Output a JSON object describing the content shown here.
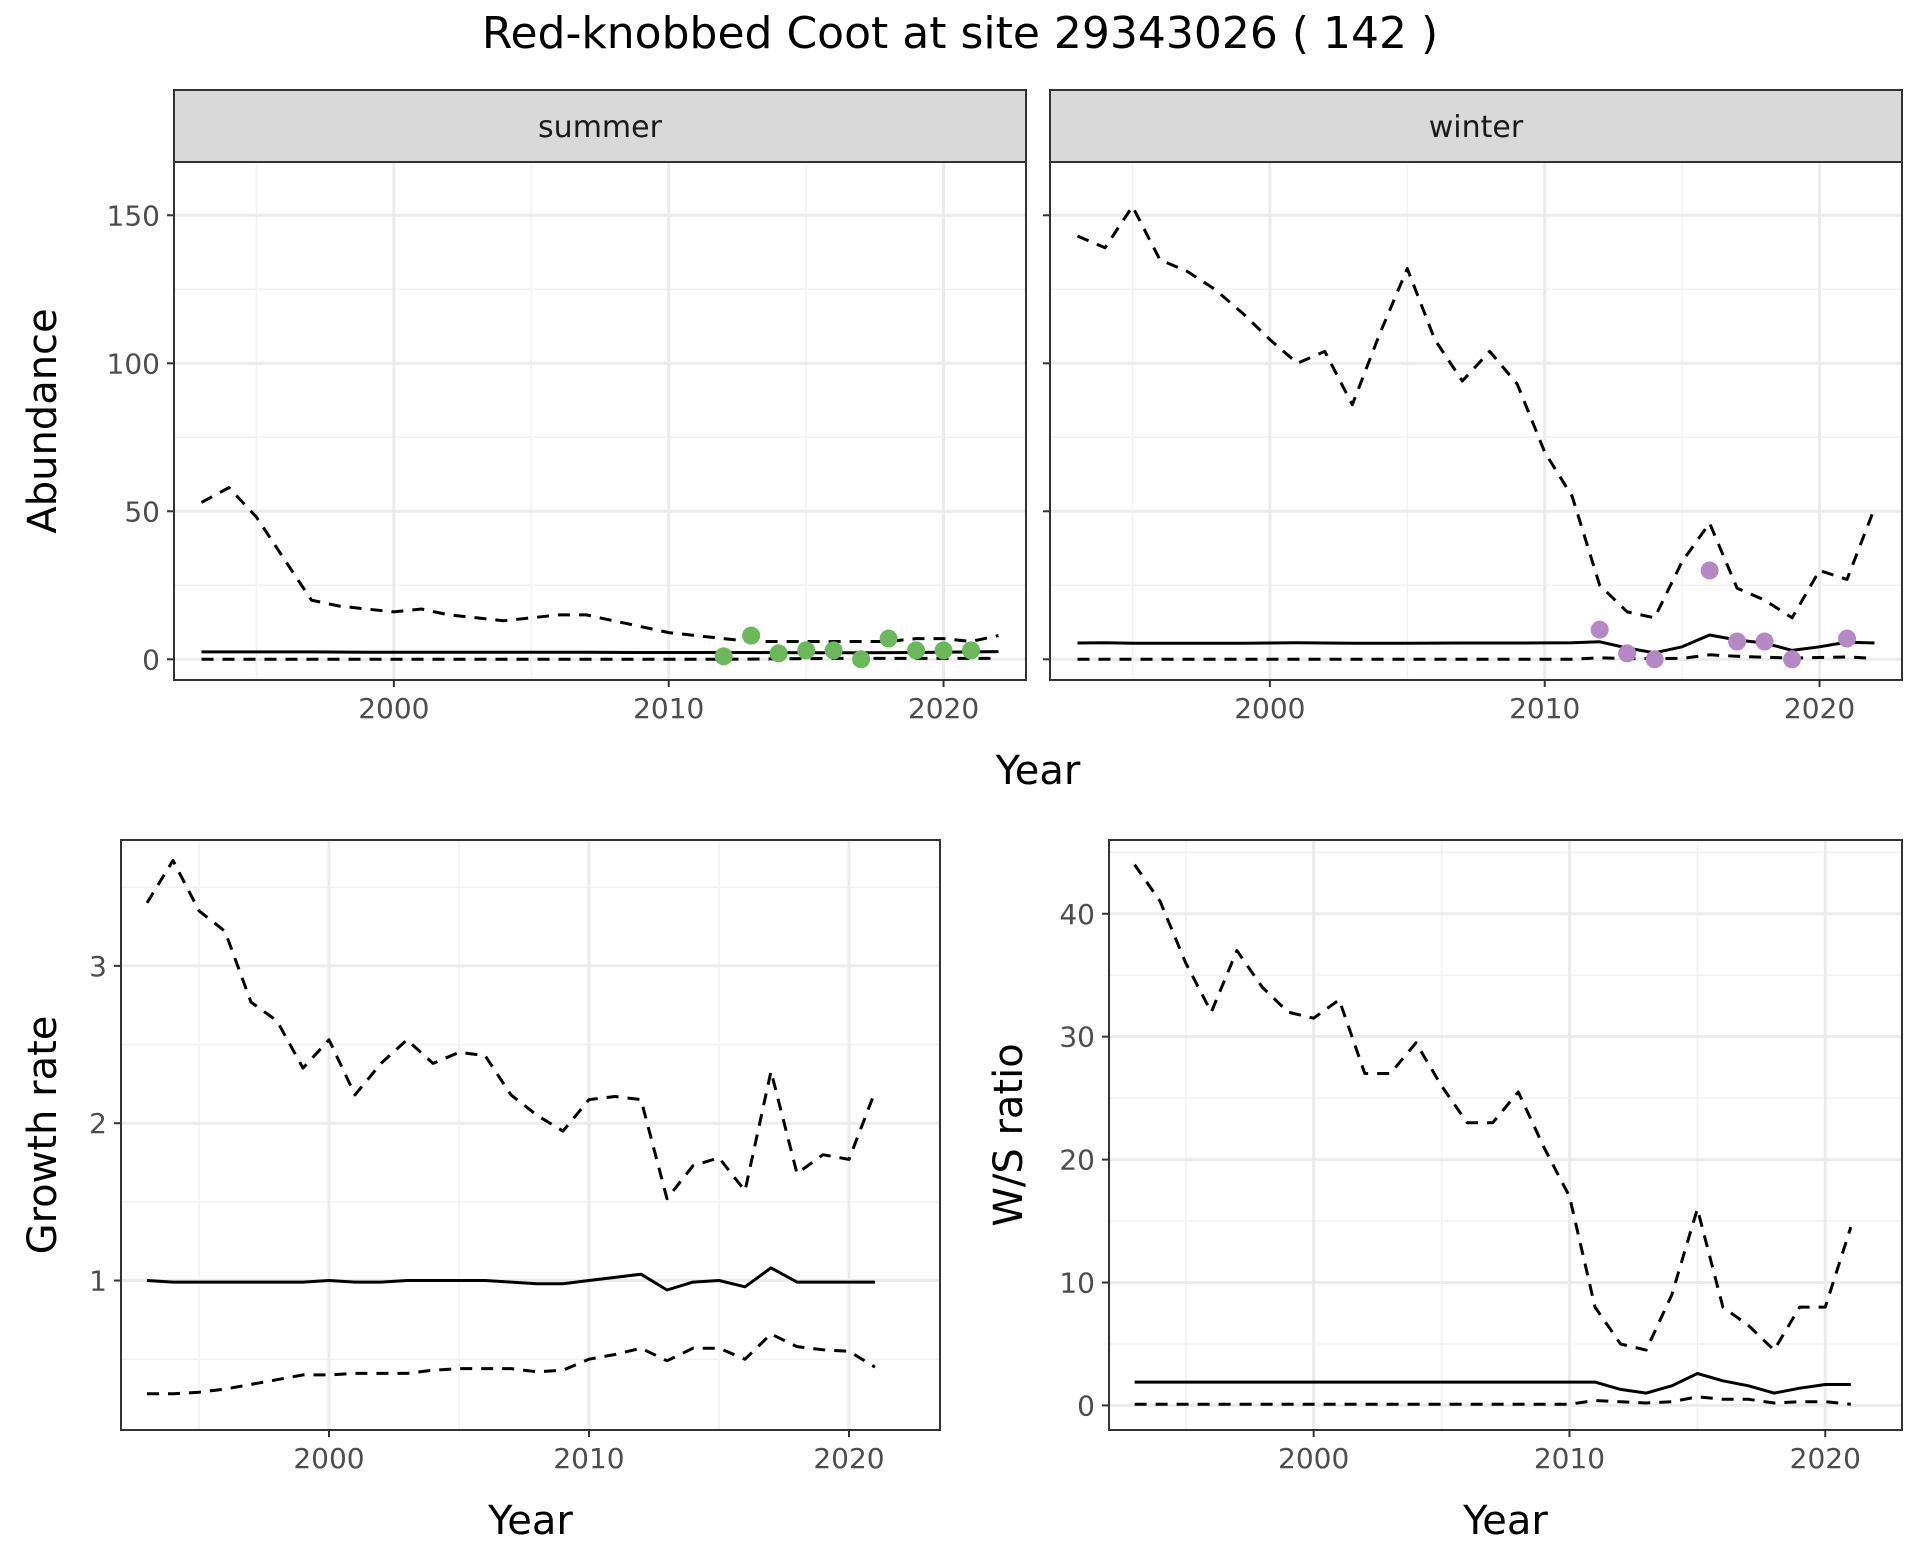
{
  "title": "Red-knobbed Coot at site 29343026 ( 142 )",
  "colors": {
    "summer_points": "#6ab85a",
    "winter_points": "#b388c4",
    "grid": "#ebebeb",
    "strip_fill": "#d9d9d9"
  },
  "chart_data": [
    {
      "type": "line",
      "panel": "summer",
      "strip": "summer",
      "xlabel": "Year",
      "ylabel": "Abundance",
      "xlim": [
        1992,
        2023
      ],
      "ylim": [
        -7,
        168
      ],
      "x_ticks": [
        2000,
        2010,
        2020
      ],
      "y_ticks": [
        0,
        50,
        100,
        150
      ],
      "grid": true,
      "series": [
        {
          "style": "solid",
          "x": [
            1993,
            1995,
            1997,
            1999,
            2001,
            2003,
            2005,
            2007,
            2009,
            2011,
            2013,
            2015,
            2017,
            2019,
            2021,
            2022
          ],
          "y": [
            2.5,
            2.5,
            2.5,
            2.4,
            2.4,
            2.4,
            2.4,
            2.4,
            2.3,
            2.3,
            2.3,
            2.2,
            2.2,
            2.3,
            2.5,
            2.6
          ]
        },
        {
          "style": "dashed",
          "x": [
            1993,
            1994,
            1995,
            1996,
            1997,
            1998,
            1999,
            2000,
            2001,
            2002,
            2003,
            2004,
            2005,
            2006,
            2007,
            2008,
            2009,
            2010,
            2011,
            2012,
            2013,
            2014,
            2015,
            2016,
            2017,
            2018,
            2019,
            2020,
            2021,
            2022
          ],
          "y": [
            53,
            58,
            48,
            34,
            20,
            18,
            17,
            16,
            17,
            15,
            14,
            13,
            14,
            15,
            15,
            13,
            11,
            9,
            8,
            7,
            6,
            6,
            6,
            6,
            6,
            6,
            7,
            7,
            6,
            8
          ]
        },
        {
          "style": "dashed",
          "x": [
            1993,
            2012,
            2016,
            2020,
            2022
          ],
          "y": [
            0,
            0,
            0.3,
            0.3,
            0.3
          ]
        }
      ],
      "points": {
        "x": [
          2012,
          2013,
          2014,
          2015,
          2016,
          2017,
          2018,
          2019,
          2020,
          2021
        ],
        "y": [
          1,
          8,
          2,
          3,
          3,
          0,
          7,
          3,
          3,
          3
        ]
      }
    },
    {
      "type": "line",
      "panel": "winter",
      "strip": "winter",
      "xlabel": "Year",
      "ylabel": "Abundance",
      "xlim": [
        1992,
        2023
      ],
      "ylim": [
        -7,
        168
      ],
      "x_ticks": [
        2000,
        2010,
        2020
      ],
      "y_ticks": [
        0,
        50,
        100,
        150
      ],
      "grid": true,
      "series": [
        {
          "style": "solid",
          "x": [
            1993,
            1994,
            1995,
            1997,
            1999,
            2001,
            2003,
            2005,
            2007,
            2009,
            2011,
            2012,
            2013,
            2014,
            2015,
            2016,
            2017,
            2018,
            2019,
            2020,
            2021,
            2022
          ],
          "y": [
            5.5,
            5.6,
            5.4,
            5.4,
            5.4,
            5.6,
            5.4,
            5.4,
            5.5,
            5.5,
            5.6,
            5.9,
            3.8,
            2.2,
            4.2,
            8.2,
            6.5,
            5.5,
            3,
            4.2,
            5.8,
            5.5
          ]
        },
        {
          "style": "dashed",
          "x": [
            1993,
            1994,
            1995,
            1996,
            1997,
            1998,
            1999,
            2000,
            2001,
            2002,
            2003,
            2004,
            2005,
            2006,
            2007,
            2008,
            2009,
            2010,
            2011,
            2012,
            2013,
            2014,
            2015,
            2016,
            2017,
            2018,
            2019,
            2020,
            2021,
            2022
          ],
          "y": [
            143,
            139,
            153,
            135,
            131,
            125,
            117,
            108,
            100,
            104,
            86,
            110,
            132,
            108,
            94,
            104,
            93,
            70,
            55,
            25,
            16,
            14,
            33,
            46,
            24,
            20,
            14,
            30,
            27,
            51
          ]
        },
        {
          "style": "dashed",
          "x": [
            1993,
            2011,
            2012,
            2013,
            2015,
            2016,
            2017,
            2019,
            2021,
            2022
          ],
          "y": [
            0,
            0,
            0.5,
            0.2,
            0.3,
            1.5,
            1,
            0.4,
            0.8,
            0.3
          ]
        }
      ],
      "points": {
        "x": [
          2012,
          2013,
          2014,
          2016,
          2017,
          2018,
          2019,
          2021
        ],
        "y": [
          10,
          2,
          0,
          30,
          6,
          6,
          0,
          7
        ]
      }
    },
    {
      "type": "line",
      "panel": "growth",
      "xlabel": "Year",
      "ylabel": "Growth rate",
      "xlim": [
        1992,
        2023.5
      ],
      "ylim": [
        0.05,
        3.8
      ],
      "x_ticks": [
        2000,
        2010,
        2020
      ],
      "y_ticks": [
        1,
        2,
        3
      ],
      "grid": true,
      "series": [
        {
          "style": "solid",
          "x": [
            1993,
            1994,
            1995,
            1996,
            1997,
            1998,
            1999,
            2000,
            2001,
            2002,
            2003,
            2004,
            2005,
            2006,
            2007,
            2008,
            2009,
            2010,
            2011,
            2012,
            2013,
            2014,
            2015,
            2016,
            2017,
            2018,
            2019,
            2020,
            2021
          ],
          "y": [
            1.0,
            0.99,
            0.99,
            0.99,
            0.99,
            0.99,
            0.99,
            1.0,
            0.99,
            0.99,
            1.0,
            1.0,
            1.0,
            1.0,
            0.99,
            0.98,
            0.98,
            1.0,
            1.02,
            1.04,
            0.94,
            0.99,
            1.0,
            0.96,
            1.08,
            0.99,
            0.99,
            0.99,
            0.99
          ]
        },
        {
          "style": "dashed",
          "x": [
            1993,
            1994,
            1995,
            1996,
            1997,
            1998,
            1999,
            2000,
            2001,
            2002,
            2003,
            2004,
            2005,
            2006,
            2007,
            2008,
            2009,
            2010,
            2011,
            2012,
            2013,
            2014,
            2015,
            2016,
            2017,
            2018,
            2019,
            2020,
            2021
          ],
          "y": [
            3.4,
            3.67,
            3.35,
            3.22,
            2.77,
            2.65,
            2.35,
            2.53,
            2.18,
            2.38,
            2.53,
            2.38,
            2.45,
            2.43,
            2.18,
            2.05,
            1.95,
            2.15,
            2.17,
            2.15,
            1.52,
            1.73,
            1.78,
            1.57,
            2.33,
            1.68,
            1.8,
            1.77,
            2.2
          ]
        },
        {
          "style": "dashed",
          "x": [
            1993,
            1994,
            1995,
            1996,
            1997,
            1998,
            1999,
            2000,
            2001,
            2002,
            2003,
            2004,
            2005,
            2006,
            2007,
            2008,
            2009,
            2010,
            2011,
            2012,
            2013,
            2014,
            2015,
            2016,
            2017,
            2018,
            2019,
            2020,
            2021
          ],
          "y": [
            0.28,
            0.28,
            0.29,
            0.31,
            0.34,
            0.37,
            0.4,
            0.4,
            0.41,
            0.41,
            0.41,
            0.43,
            0.44,
            0.44,
            0.44,
            0.42,
            0.43,
            0.5,
            0.53,
            0.57,
            0.49,
            0.57,
            0.57,
            0.5,
            0.66,
            0.58,
            0.56,
            0.55,
            0.45
          ]
        }
      ]
    },
    {
      "type": "line",
      "panel": "ratio",
      "xlabel": "Year",
      "ylabel": "W/S ratio",
      "xlim": [
        1992,
        2023
      ],
      "ylim": [
        -2,
        46
      ],
      "x_ticks": [
        2000,
        2010,
        2020
      ],
      "y_ticks": [
        0,
        10,
        20,
        30,
        40
      ],
      "grid": true,
      "series": [
        {
          "style": "solid",
          "x": [
            1993,
            1994,
            1995,
            1996,
            1997,
            1998,
            1999,
            2000,
            2001,
            2002,
            2003,
            2004,
            2005,
            2006,
            2007,
            2008,
            2009,
            2010,
            2011,
            2012,
            2013,
            2014,
            2015,
            2016,
            2017,
            2018,
            2019,
            2020,
            2021
          ],
          "y": [
            1.9,
            1.9,
            1.9,
            1.9,
            1.9,
            1.9,
            1.9,
            1.9,
            1.9,
            1.9,
            1.9,
            1.9,
            1.9,
            1.9,
            1.9,
            1.9,
            1.9,
            1.9,
            1.9,
            1.3,
            1.0,
            1.6,
            2.6,
            2.0,
            1.6,
            1.0,
            1.4,
            1.7,
            1.7
          ]
        },
        {
          "style": "dashed",
          "x": [
            1993,
            1994,
            1995,
            1996,
            1997,
            1998,
            1999,
            2000,
            2001,
            2002,
            2003,
            2004,
            2005,
            2006,
            2007,
            2008,
            2009,
            2010,
            2011,
            2012,
            2013,
            2014,
            2015,
            2016,
            2017,
            2018,
            2019,
            2020,
            2021
          ],
          "y": [
            44,
            41,
            36,
            32,
            37,
            34,
            32,
            31.5,
            33,
            27,
            27,
            29.5,
            26,
            23,
            23,
            25.5,
            21,
            17,
            8,
            5,
            4.5,
            9,
            16,
            8,
            6.5,
            4.5,
            8,
            8,
            14.5
          ]
        },
        {
          "style": "dashed",
          "x": [
            1993,
            2010,
            2011,
            2013,
            2014,
            2015,
            2016,
            2017,
            2018,
            2019,
            2020,
            2021
          ],
          "y": [
            0.1,
            0.1,
            0.4,
            0.2,
            0.3,
            0.7,
            0.5,
            0.5,
            0.2,
            0.3,
            0.3,
            0.1
          ]
        }
      ]
    }
  ]
}
